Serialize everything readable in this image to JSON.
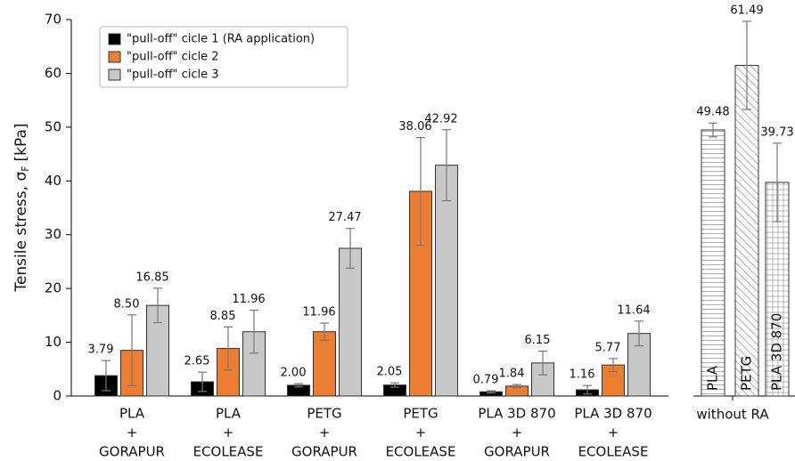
{
  "chart_data": [
    {
      "type": "bar",
      "y_label": {
        "main": "Tensile stress, σ",
        "sub": "F",
        "unit": "[kPa]"
      },
      "categories": [
        [
          "PLA",
          "+",
          "GORAPUR"
        ],
        [
          "PLA",
          "+",
          "ECOLEASE"
        ],
        [
          "PETG",
          "+",
          "GORAPUR"
        ],
        [
          "PETG",
          "+",
          "ECOLEASE"
        ],
        [
          "PLA 3D 870",
          "+",
          "GORAPUR"
        ],
        [
          "PLA 3D 870",
          "+",
          "ECOLEASE"
        ]
      ],
      "series": [
        {
          "name": "\"pull-off\" cicle 1 (RA application)",
          "color": "#000000",
          "values": [
            3.79,
            2.65,
            2.0,
            2.05,
            0.79,
            1.16
          ],
          "value_labels": [
            "3.79",
            "2.65",
            "2.00",
            "2.05",
            "0.79",
            "1.16"
          ],
          "errors": [
            2.8,
            1.8,
            0.3,
            0.4,
            0.2,
            0.8
          ]
        },
        {
          "name": "\"pull-off\" cicle 2",
          "color": "#ed7d31",
          "values": [
            8.5,
            8.85,
            11.96,
            38.06,
            1.84,
            5.77
          ],
          "value_labels": [
            "8.50",
            "8.85",
            "11.96",
            "38.06",
            "1.84",
            "5.77"
          ],
          "errors": [
            6.6,
            4.0,
            1.6,
            10.0,
            0.3,
            1.2
          ]
        },
        {
          "name": "\"pull-off\" cicle 3",
          "color": "#c8c8c8",
          "values": [
            16.85,
            11.96,
            27.47,
            42.92,
            6.15,
            11.64
          ],
          "value_labels": [
            "16.85",
            "11.96",
            "27.47",
            "42.92",
            "6.15",
            "11.64"
          ],
          "errors": [
            3.2,
            4.0,
            3.7,
            6.6,
            2.2,
            2.3
          ]
        }
      ],
      "ylim": [
        0,
        70
      ],
      "yticks": [
        0,
        10,
        20,
        30,
        40,
        50,
        60,
        70
      ],
      "legend": "upper-left"
    },
    {
      "type": "bar",
      "x_label": "without RA",
      "categories": [
        "PLA",
        "PETG",
        "PLA 3D 870"
      ],
      "values": [
        49.48,
        61.49,
        39.73
      ],
      "errors": [
        1.3,
        8.2,
        7.3
      ],
      "hatches": [
        "horizontal",
        "diagonal",
        "grid"
      ],
      "color": "#ffffff",
      "ylim": [
        0,
        70
      ]
    }
  ]
}
